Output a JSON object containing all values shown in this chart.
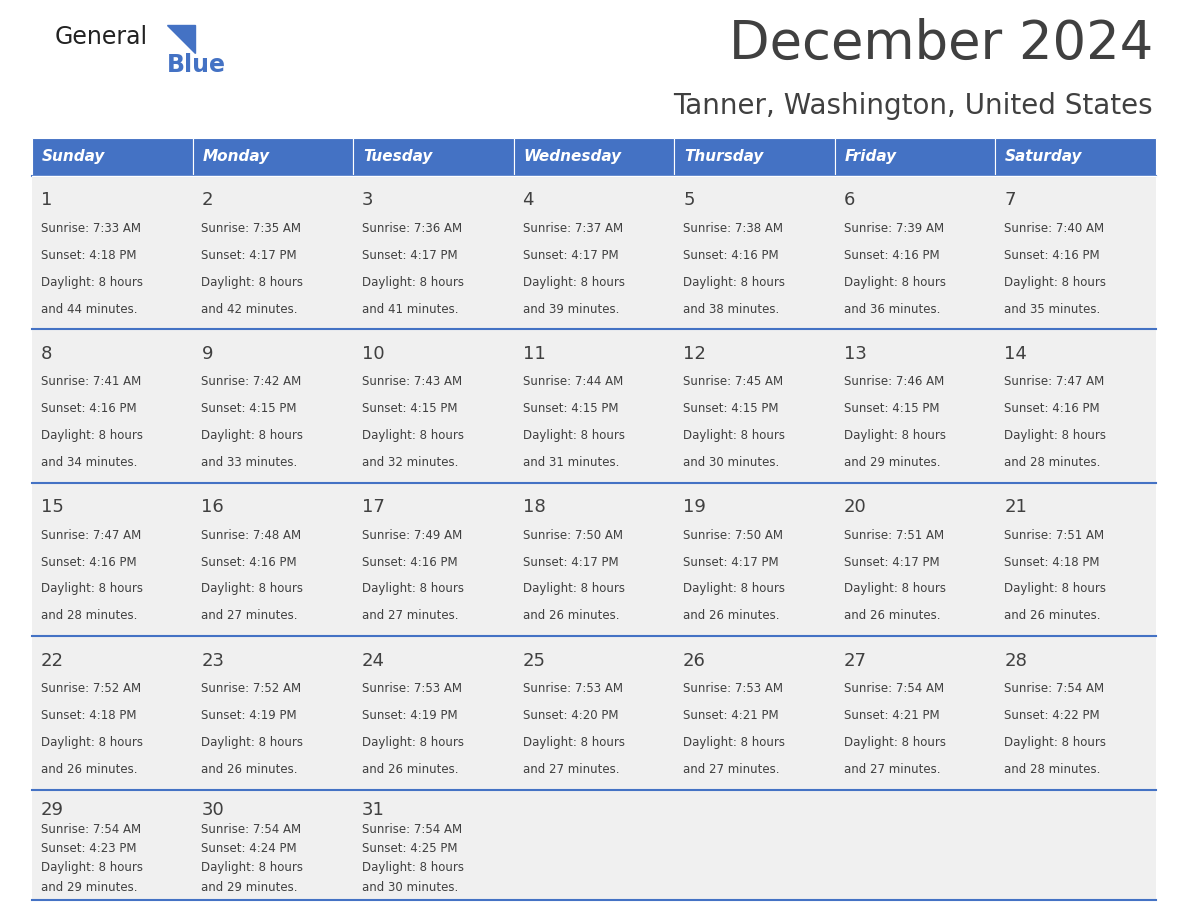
{
  "title": "December 2024",
  "subtitle": "Tanner, Washington, United States",
  "header_color": "#4472C4",
  "header_text_color": "#FFFFFF",
  "weekdays": [
    "Sunday",
    "Monday",
    "Tuesday",
    "Wednesday",
    "Thursday",
    "Friday",
    "Saturday"
  ],
  "days": [
    {
      "day": 1,
      "col": 0,
      "row": 0,
      "sunrise": "7:33 AM",
      "sunset": "4:18 PM",
      "daylight_h": "8 hours",
      "daylight_m": "and 44 minutes."
    },
    {
      "day": 2,
      "col": 1,
      "row": 0,
      "sunrise": "7:35 AM",
      "sunset": "4:17 PM",
      "daylight_h": "8 hours",
      "daylight_m": "and 42 minutes."
    },
    {
      "day": 3,
      "col": 2,
      "row": 0,
      "sunrise": "7:36 AM",
      "sunset": "4:17 PM",
      "daylight_h": "8 hours",
      "daylight_m": "and 41 minutes."
    },
    {
      "day": 4,
      "col": 3,
      "row": 0,
      "sunrise": "7:37 AM",
      "sunset": "4:17 PM",
      "daylight_h": "8 hours",
      "daylight_m": "and 39 minutes."
    },
    {
      "day": 5,
      "col": 4,
      "row": 0,
      "sunrise": "7:38 AM",
      "sunset": "4:16 PM",
      "daylight_h": "8 hours",
      "daylight_m": "and 38 minutes."
    },
    {
      "day": 6,
      "col": 5,
      "row": 0,
      "sunrise": "7:39 AM",
      "sunset": "4:16 PM",
      "daylight_h": "8 hours",
      "daylight_m": "and 36 minutes."
    },
    {
      "day": 7,
      "col": 6,
      "row": 0,
      "sunrise": "7:40 AM",
      "sunset": "4:16 PM",
      "daylight_h": "8 hours",
      "daylight_m": "and 35 minutes."
    },
    {
      "day": 8,
      "col": 0,
      "row": 1,
      "sunrise": "7:41 AM",
      "sunset": "4:16 PM",
      "daylight_h": "8 hours",
      "daylight_m": "and 34 minutes."
    },
    {
      "day": 9,
      "col": 1,
      "row": 1,
      "sunrise": "7:42 AM",
      "sunset": "4:15 PM",
      "daylight_h": "8 hours",
      "daylight_m": "and 33 minutes."
    },
    {
      "day": 10,
      "col": 2,
      "row": 1,
      "sunrise": "7:43 AM",
      "sunset": "4:15 PM",
      "daylight_h": "8 hours",
      "daylight_m": "and 32 minutes."
    },
    {
      "day": 11,
      "col": 3,
      "row": 1,
      "sunrise": "7:44 AM",
      "sunset": "4:15 PM",
      "daylight_h": "8 hours",
      "daylight_m": "and 31 minutes."
    },
    {
      "day": 12,
      "col": 4,
      "row": 1,
      "sunrise": "7:45 AM",
      "sunset": "4:15 PM",
      "daylight_h": "8 hours",
      "daylight_m": "and 30 minutes."
    },
    {
      "day": 13,
      "col": 5,
      "row": 1,
      "sunrise": "7:46 AM",
      "sunset": "4:15 PM",
      "daylight_h": "8 hours",
      "daylight_m": "and 29 minutes."
    },
    {
      "day": 14,
      "col": 6,
      "row": 1,
      "sunrise": "7:47 AM",
      "sunset": "4:16 PM",
      "daylight_h": "8 hours",
      "daylight_m": "and 28 minutes."
    },
    {
      "day": 15,
      "col": 0,
      "row": 2,
      "sunrise": "7:47 AM",
      "sunset": "4:16 PM",
      "daylight_h": "8 hours",
      "daylight_m": "and 28 minutes."
    },
    {
      "day": 16,
      "col": 1,
      "row": 2,
      "sunrise": "7:48 AM",
      "sunset": "4:16 PM",
      "daylight_h": "8 hours",
      "daylight_m": "and 27 minutes."
    },
    {
      "day": 17,
      "col": 2,
      "row": 2,
      "sunrise": "7:49 AM",
      "sunset": "4:16 PM",
      "daylight_h": "8 hours",
      "daylight_m": "and 27 minutes."
    },
    {
      "day": 18,
      "col": 3,
      "row": 2,
      "sunrise": "7:50 AM",
      "sunset": "4:17 PM",
      "daylight_h": "8 hours",
      "daylight_m": "and 26 minutes."
    },
    {
      "day": 19,
      "col": 4,
      "row": 2,
      "sunrise": "7:50 AM",
      "sunset": "4:17 PM",
      "daylight_h": "8 hours",
      "daylight_m": "and 26 minutes."
    },
    {
      "day": 20,
      "col": 5,
      "row": 2,
      "sunrise": "7:51 AM",
      "sunset": "4:17 PM",
      "daylight_h": "8 hours",
      "daylight_m": "and 26 minutes."
    },
    {
      "day": 21,
      "col": 6,
      "row": 2,
      "sunrise": "7:51 AM",
      "sunset": "4:18 PM",
      "daylight_h": "8 hours",
      "daylight_m": "and 26 minutes."
    },
    {
      "day": 22,
      "col": 0,
      "row": 3,
      "sunrise": "7:52 AM",
      "sunset": "4:18 PM",
      "daylight_h": "8 hours",
      "daylight_m": "and 26 minutes."
    },
    {
      "day": 23,
      "col": 1,
      "row": 3,
      "sunrise": "7:52 AM",
      "sunset": "4:19 PM",
      "daylight_h": "8 hours",
      "daylight_m": "and 26 minutes."
    },
    {
      "day": 24,
      "col": 2,
      "row": 3,
      "sunrise": "7:53 AM",
      "sunset": "4:19 PM",
      "daylight_h": "8 hours",
      "daylight_m": "and 26 minutes."
    },
    {
      "day": 25,
      "col": 3,
      "row": 3,
      "sunrise": "7:53 AM",
      "sunset": "4:20 PM",
      "daylight_h": "8 hours",
      "daylight_m": "and 27 minutes."
    },
    {
      "day": 26,
      "col": 4,
      "row": 3,
      "sunrise": "7:53 AM",
      "sunset": "4:21 PM",
      "daylight_h": "8 hours",
      "daylight_m": "and 27 minutes."
    },
    {
      "day": 27,
      "col": 5,
      "row": 3,
      "sunrise": "7:54 AM",
      "sunset": "4:21 PM",
      "daylight_h": "8 hours",
      "daylight_m": "and 27 minutes."
    },
    {
      "day": 28,
      "col": 6,
      "row": 3,
      "sunrise": "7:54 AM",
      "sunset": "4:22 PM",
      "daylight_h": "8 hours",
      "daylight_m": "and 28 minutes."
    },
    {
      "day": 29,
      "col": 0,
      "row": 4,
      "sunrise": "7:54 AM",
      "sunset": "4:23 PM",
      "daylight_h": "8 hours",
      "daylight_m": "and 29 minutes."
    },
    {
      "day": 30,
      "col": 1,
      "row": 4,
      "sunrise": "7:54 AM",
      "sunset": "4:24 PM",
      "daylight_h": "8 hours",
      "daylight_m": "and 29 minutes."
    },
    {
      "day": 31,
      "col": 2,
      "row": 4,
      "sunrise": "7:54 AM",
      "sunset": "4:25 PM",
      "daylight_h": "8 hours",
      "daylight_m": "and 30 minutes."
    }
  ],
  "bg_color": "#FFFFFF",
  "cell_bg": "#F0F0F0",
  "row_line_color": "#4472C4",
  "text_color": "#404040",
  "logo_general_color": "#222222",
  "logo_blue_color": "#4472C4",
  "n_cols": 7,
  "n_rows": 5,
  "title_fontsize": 38,
  "subtitle_fontsize": 20,
  "header_fontsize": 11,
  "day_num_fontsize": 13,
  "info_fontsize": 8.5
}
